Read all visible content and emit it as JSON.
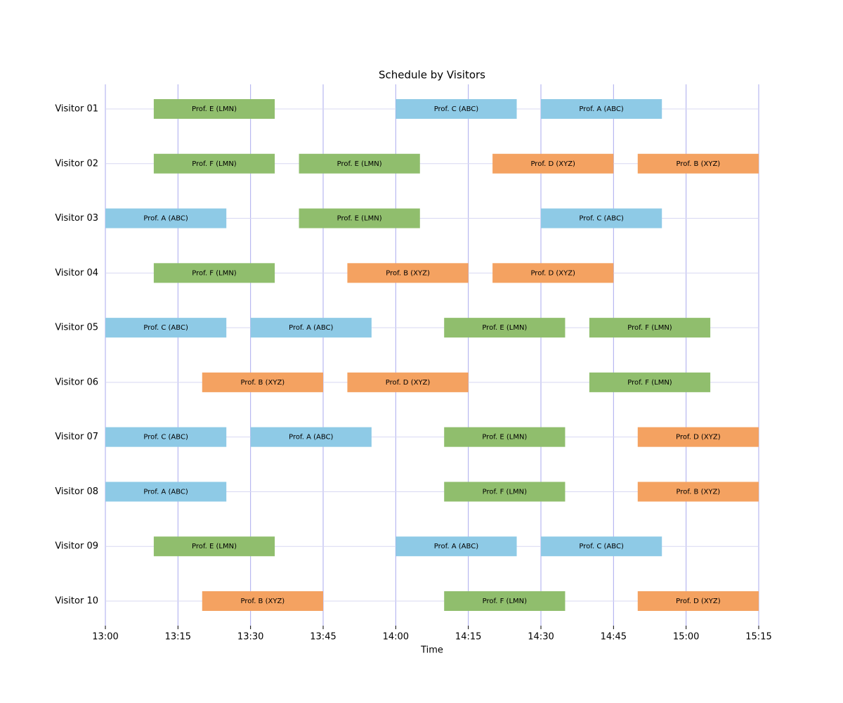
{
  "chart_data": {
    "type": "gantt",
    "title": "Schedule by Visitors",
    "xlabel": "Time",
    "xlim": [
      780,
      915
    ],
    "xticks": [
      {
        "value": 780,
        "label": "13:00"
      },
      {
        "value": 795,
        "label": "13:15"
      },
      {
        "value": 810,
        "label": "13:30"
      },
      {
        "value": 825,
        "label": "13:45"
      },
      {
        "value": 840,
        "label": "14:00"
      },
      {
        "value": 855,
        "label": "14:15"
      },
      {
        "value": 870,
        "label": "14:30"
      },
      {
        "value": 885,
        "label": "14:45"
      },
      {
        "value": 900,
        "label": "15:00"
      },
      {
        "value": 915,
        "label": "15:15"
      }
    ],
    "grid": true,
    "rows": [
      {
        "name": "Visitor 01",
        "tasks": [
          {
            "label": "Prof. E (LMN)",
            "start": 790,
            "end": 815,
            "color": "#90be6d"
          },
          {
            "label": "Prof. C (ABC)",
            "start": 840,
            "end": 865,
            "color": "#8ecae6"
          },
          {
            "label": "Prof. A (ABC)",
            "start": 870,
            "end": 895,
            "color": "#8ecae6"
          }
        ]
      },
      {
        "name": "Visitor 02",
        "tasks": [
          {
            "label": "Prof. F (LMN)",
            "start": 790,
            "end": 815,
            "color": "#90be6d"
          },
          {
            "label": "Prof. E (LMN)",
            "start": 820,
            "end": 845,
            "color": "#90be6d"
          },
          {
            "label": "Prof. D (XYZ)",
            "start": 860,
            "end": 885,
            "color": "#f4a261"
          },
          {
            "label": "Prof. B (XYZ)",
            "start": 890,
            "end": 915,
            "color": "#f4a261"
          }
        ]
      },
      {
        "name": "Visitor 03",
        "tasks": [
          {
            "label": "Prof. A (ABC)",
            "start": 780,
            "end": 805,
            "color": "#8ecae6"
          },
          {
            "label": "Prof. E (LMN)",
            "start": 820,
            "end": 845,
            "color": "#90be6d"
          },
          {
            "label": "Prof. C (ABC)",
            "start": 870,
            "end": 895,
            "color": "#8ecae6"
          }
        ]
      },
      {
        "name": "Visitor 04",
        "tasks": [
          {
            "label": "Prof. F (LMN)",
            "start": 790,
            "end": 815,
            "color": "#90be6d"
          },
          {
            "label": "Prof. B (XYZ)",
            "start": 830,
            "end": 855,
            "color": "#f4a261"
          },
          {
            "label": "Prof. D (XYZ)",
            "start": 860,
            "end": 885,
            "color": "#f4a261"
          }
        ]
      },
      {
        "name": "Visitor 05",
        "tasks": [
          {
            "label": "Prof. C (ABC)",
            "start": 780,
            "end": 805,
            "color": "#8ecae6"
          },
          {
            "label": "Prof. A (ABC)",
            "start": 810,
            "end": 835,
            "color": "#8ecae6"
          },
          {
            "label": "Prof. E (LMN)",
            "start": 850,
            "end": 875,
            "color": "#90be6d"
          },
          {
            "label": "Prof. F (LMN)",
            "start": 880,
            "end": 905,
            "color": "#90be6d"
          }
        ]
      },
      {
        "name": "Visitor 06",
        "tasks": [
          {
            "label": "Prof. B (XYZ)",
            "start": 800,
            "end": 825,
            "color": "#f4a261"
          },
          {
            "label": "Prof. D (XYZ)",
            "start": 830,
            "end": 855,
            "color": "#f4a261"
          },
          {
            "label": "Prof. F (LMN)",
            "start": 880,
            "end": 905,
            "color": "#90be6d"
          }
        ]
      },
      {
        "name": "Visitor 07",
        "tasks": [
          {
            "label": "Prof. C (ABC)",
            "start": 780,
            "end": 805,
            "color": "#8ecae6"
          },
          {
            "label": "Prof. A (ABC)",
            "start": 810,
            "end": 835,
            "color": "#8ecae6"
          },
          {
            "label": "Prof. E (LMN)",
            "start": 850,
            "end": 875,
            "color": "#90be6d"
          },
          {
            "label": "Prof. D (XYZ)",
            "start": 890,
            "end": 915,
            "color": "#f4a261"
          }
        ]
      },
      {
        "name": "Visitor 08",
        "tasks": [
          {
            "label": "Prof. A (ABC)",
            "start": 780,
            "end": 805,
            "color": "#8ecae6"
          },
          {
            "label": "Prof. F (LMN)",
            "start": 850,
            "end": 875,
            "color": "#90be6d"
          },
          {
            "label": "Prof. B (XYZ)",
            "start": 890,
            "end": 915,
            "color": "#f4a261"
          }
        ]
      },
      {
        "name": "Visitor 09",
        "tasks": [
          {
            "label": "Prof. E (LMN)",
            "start": 790,
            "end": 815,
            "color": "#90be6d"
          },
          {
            "label": "Prof. A (ABC)",
            "start": 840,
            "end": 865,
            "color": "#8ecae6"
          },
          {
            "label": "Prof. C (ABC)",
            "start": 870,
            "end": 895,
            "color": "#8ecae6"
          }
        ]
      },
      {
        "name": "Visitor 10",
        "tasks": [
          {
            "label": "Prof. B (XYZ)",
            "start": 800,
            "end": 825,
            "color": "#f4a261"
          },
          {
            "label": "Prof. F (LMN)",
            "start": 850,
            "end": 875,
            "color": "#90be6d"
          },
          {
            "label": "Prof. D (XYZ)",
            "start": 890,
            "end": 915,
            "color": "#f4a261"
          }
        ]
      }
    ]
  }
}
